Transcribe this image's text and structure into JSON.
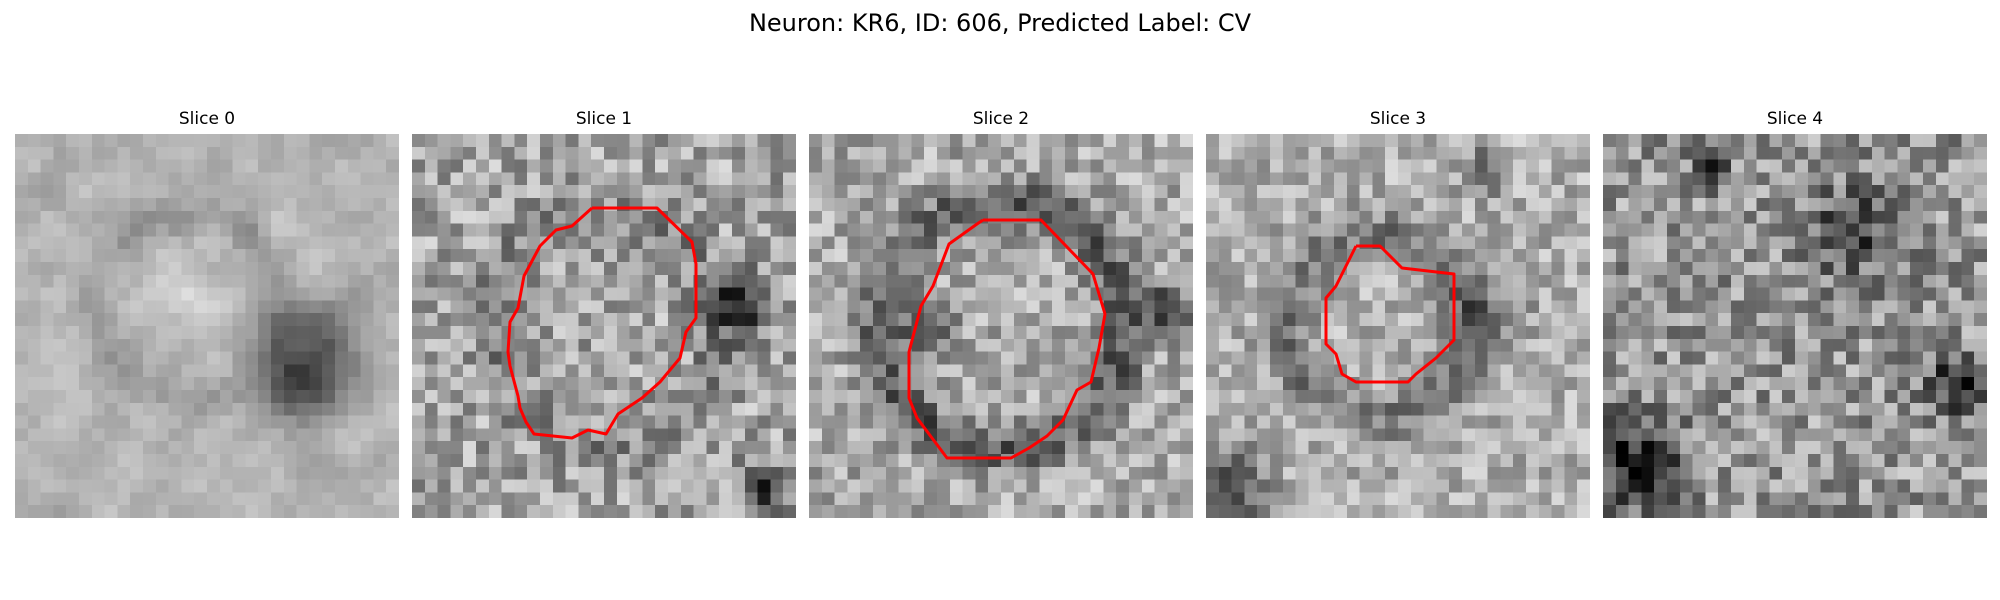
{
  "figure": {
    "title": "Neuron: KR6, ID: 606, Predicted Label: CV"
  },
  "panels": [
    {
      "title": "Slice 0",
      "has_contour": false
    },
    {
      "title": "Slice 1",
      "has_contour": true
    },
    {
      "title": "Slice 2",
      "has_contour": true
    },
    {
      "title": "Slice 3",
      "has_contour": true
    },
    {
      "title": "Slice 4",
      "has_contour": false
    }
  ],
  "colors": {
    "contour": "#ff0000",
    "background": "#ffffff"
  }
}
